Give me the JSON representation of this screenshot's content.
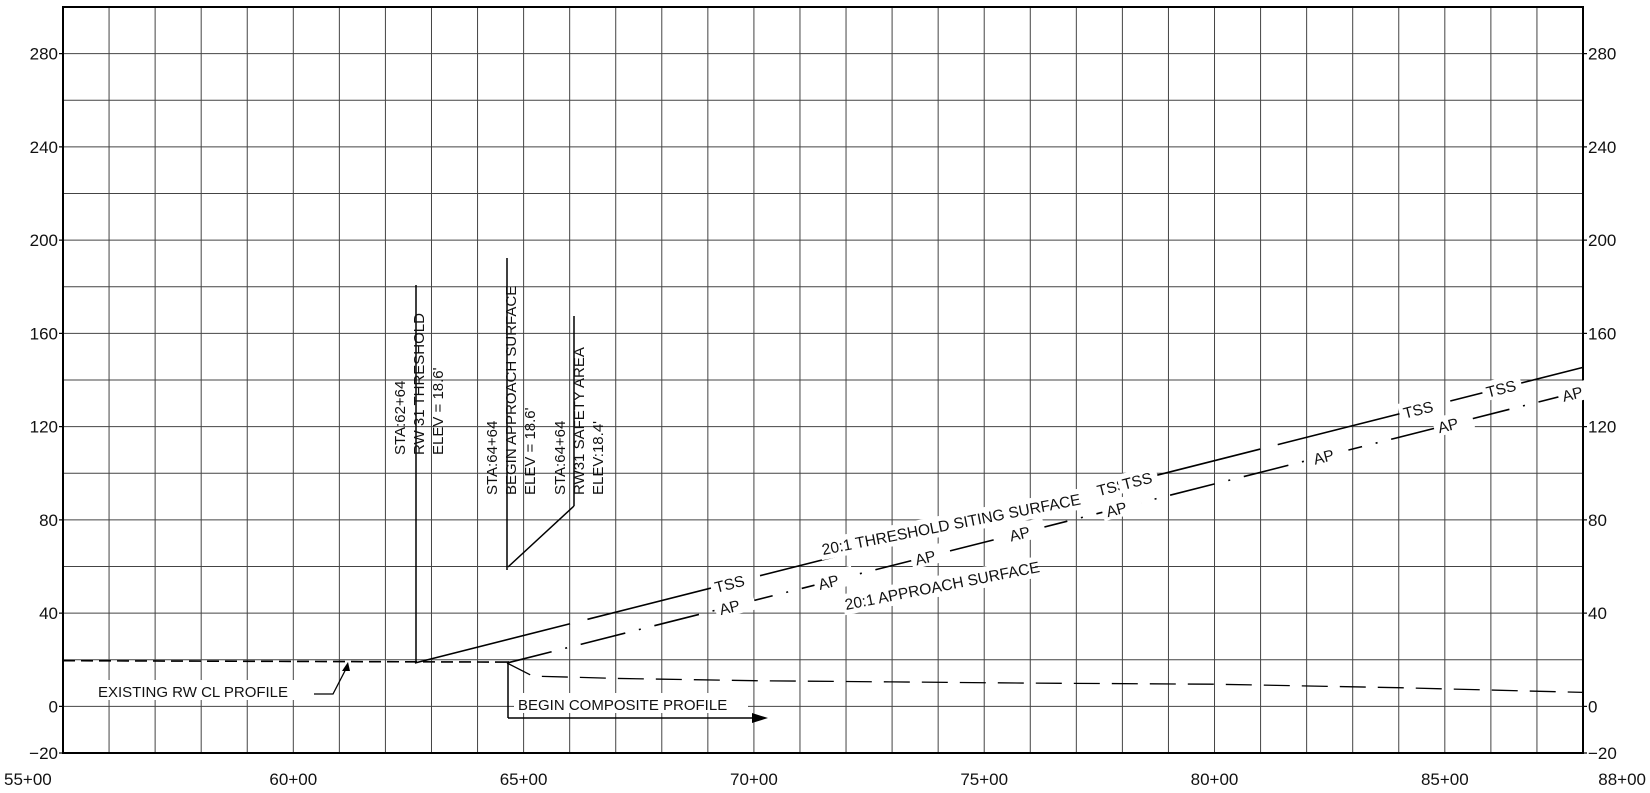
{
  "chart_data": {
    "type": "line",
    "title": "",
    "xlabel": "",
    "ylabel": "",
    "xlim": [
      5500,
      8800
    ],
    "ylim": [
      -20,
      300
    ],
    "x_ticks": [
      {
        "x": 5500,
        "label": "55+00"
      },
      {
        "x": 6000,
        "label": "60+00"
      },
      {
        "x": 6500,
        "label": "65+00"
      },
      {
        "x": 7000,
        "label": "70+00"
      },
      {
        "x": 7500,
        "label": "75+00"
      },
      {
        "x": 8000,
        "label": "80+00"
      },
      {
        "x": 8500,
        "label": "85+00"
      },
      {
        "x": 8800,
        "label": "88+00"
      }
    ],
    "y_ticks": [
      {
        "y": -20,
        "label": "−20"
      },
      {
        "y": 0,
        "label": "0"
      },
      {
        "y": 40,
        "label": "40"
      },
      {
        "y": 80,
        "label": "80"
      },
      {
        "y": 120,
        "label": "120"
      },
      {
        "y": 160,
        "label": "160"
      },
      {
        "y": 200,
        "label": "200"
      },
      {
        "y": 240,
        "label": "240"
      },
      {
        "y": 280,
        "label": "280"
      }
    ],
    "grid": true,
    "series": [
      {
        "name": "TSS",
        "style": "long-dash",
        "x": [
          6264,
          8800
        ],
        "y": [
          18.6,
          145.4
        ]
      },
      {
        "name": "AP",
        "style": "dash-dot",
        "x": [
          6464,
          8800
        ],
        "y": [
          18.6,
          135.4
        ]
      },
      {
        "name": "",
        "style": "dashed",
        "x": [
          5500,
          6464
        ],
        "y": [
          19.6,
          19.0
        ]
      },
      {
        "name": "",
        "style": "dashed",
        "x": [
          6464,
          6520,
          6700,
          7000,
          7300,
          7600,
          8000,
          8400,
          8800
        ],
        "y": [
          18.6,
          13,
          12,
          11,
          10.5,
          10,
          9.5,
          8,
          6
        ]
      }
    ],
    "annotations": [
      {
        "lines": [
          "STA:62+64",
          "RW 31 THRESHOLD",
          "ELEV = 18.6'"
        ]
      },
      {
        "lines": [
          "STA:64+64",
          "BEGIN APPROACH SURFACE",
          "ELEV = 18.6'"
        ]
      },
      {
        "lines": [
          "STA:64+64",
          "RW31 SAFETY AREA",
          "ELEV:18.4'"
        ]
      },
      {
        "text": "EXISTING RW CL PROFILE"
      },
      {
        "text": "BEGIN COMPOSITE PROFILE"
      },
      {
        "text": "20:1 THRESHOLD SITING SURFACE"
      },
      {
        "text": "20:1 APPROACH SURFACE"
      }
    ],
    "series_labels": {
      "tss": [
        "TSS",
        "TSS",
        "TSS",
        "TSS",
        "TSS"
      ],
      "ap": [
        "AP",
        "AP",
        "AP",
        "AP",
        "AP",
        "AP",
        "AP",
        "AP"
      ]
    }
  }
}
